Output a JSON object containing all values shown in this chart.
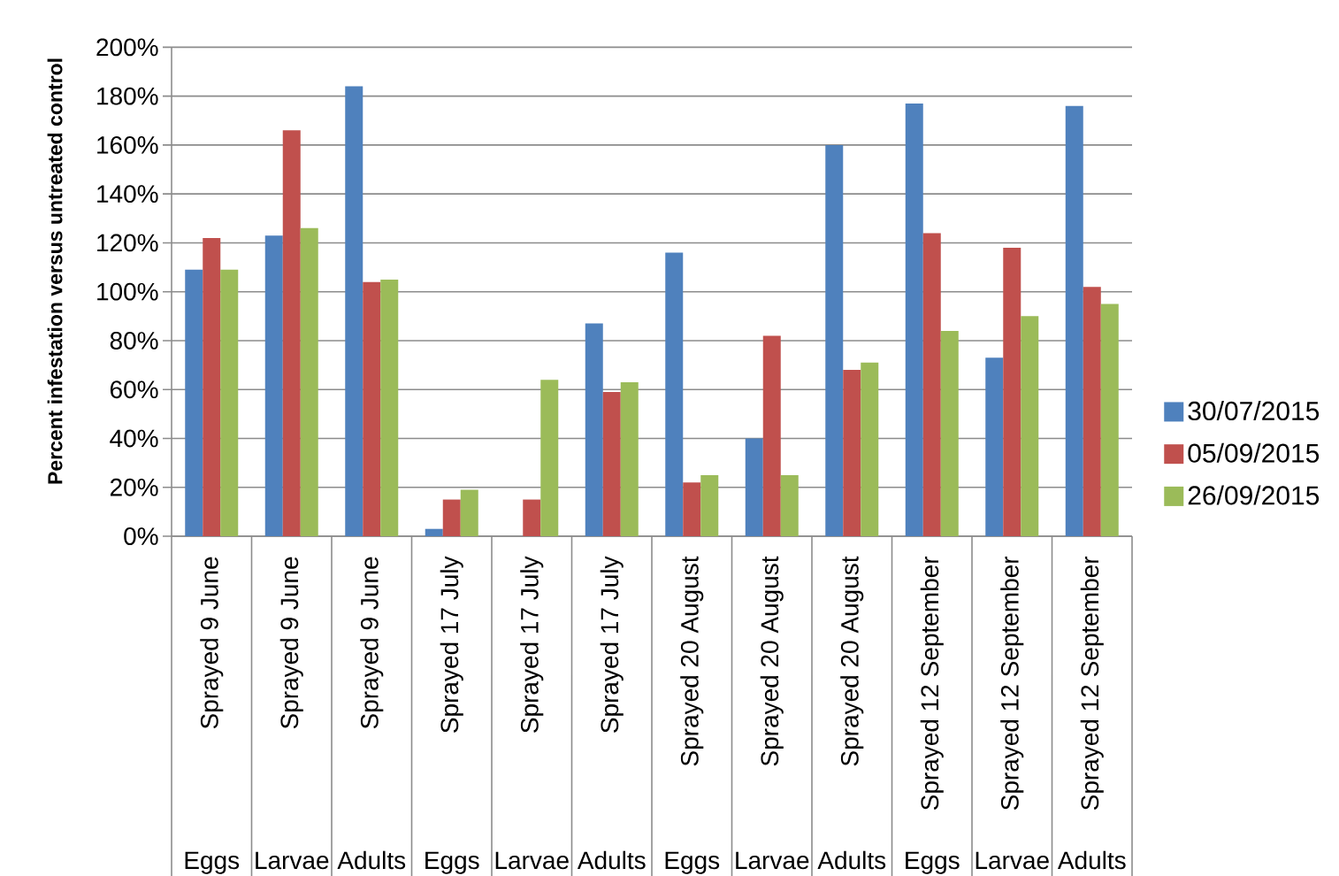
{
  "chart_data": {
    "type": "bar",
    "ylabel": "Percent infestation versus untreated control",
    "categories": [
      "Sprayed 9 June",
      "Sprayed 9 June",
      "Sprayed 9 June",
      "Sprayed 17 July",
      "Sprayed 17 July",
      "Sprayed 17 July",
      "Sprayed 20 August",
      "Sprayed 20 August",
      "Sprayed 20 August",
      "Sprayed 12 September",
      "Sprayed 12 September",
      "Sprayed 12 September"
    ],
    "annotations": [
      "Eggs",
      "Larvae",
      "Adults",
      "Eggs",
      "Larvae",
      "Adults",
      "Eggs",
      "Larvae",
      "Adults",
      "Eggs",
      "Larvae",
      "Adults"
    ],
    "series": [
      {
        "name": "30/07/2015",
        "color": "#4f81bd",
        "values": [
          109,
          123,
          184,
          3,
          null,
          87,
          116,
          40,
          160,
          177,
          73,
          176
        ]
      },
      {
        "name": "05/09/2015",
        "color": "#c0504d",
        "values": [
          122,
          166,
          104,
          15,
          15,
          59,
          22,
          82,
          68,
          124,
          118,
          102
        ]
      },
      {
        "name": "26/09/2015",
        "color": "#9bbb59",
        "values": [
          109,
          126,
          105,
          19,
          64,
          63,
          25,
          25,
          71,
          84,
          90,
          95
        ]
      }
    ],
    "ylim": [
      0,
      200
    ],
    "yticks": [
      {
        "value": 0,
        "label": "0%"
      },
      {
        "value": 20,
        "label": "20%"
      },
      {
        "value": 40,
        "label": "40%"
      },
      {
        "value": 60,
        "label": "60%"
      },
      {
        "value": 80,
        "label": "80%"
      },
      {
        "value": 100,
        "label": "100%"
      },
      {
        "value": 120,
        "label": "120%"
      },
      {
        "value": 140,
        "label": "140%"
      },
      {
        "value": 160,
        "label": "160%"
      },
      {
        "value": 180,
        "label": "180%"
      },
      {
        "value": 200,
        "label": "200%"
      }
    ],
    "grid": "y",
    "legend": "right"
  }
}
